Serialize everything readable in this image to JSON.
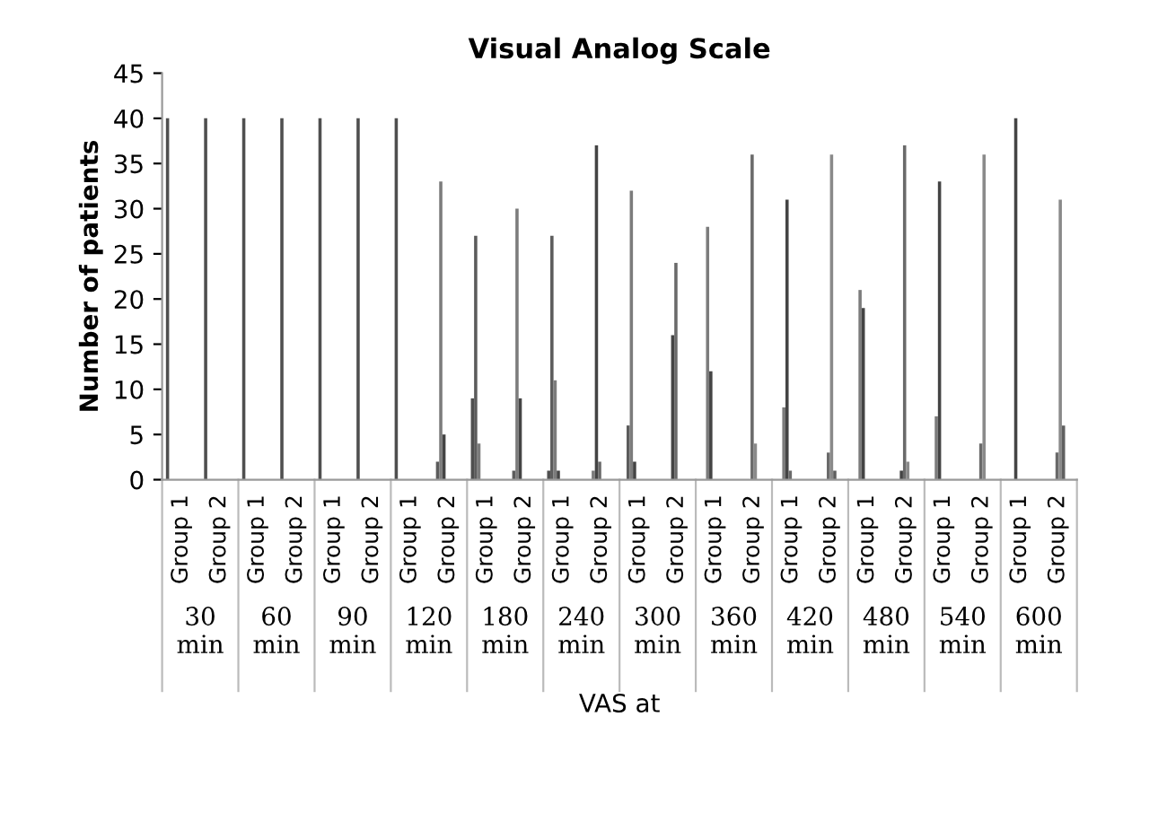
{
  "chart_data": {
    "type": "bar",
    "title": "Visual Analog Scale",
    "xlabel": "VAS at",
    "ylabel": "Number of patients",
    "categories": [
      "Group 1",
      "Group 2",
      "Group 1",
      "Group 2",
      "Group 1",
      "Group 2",
      "Group 1",
      "Group 2",
      "Group 1",
      "Group 2",
      "Group 1",
      "Group 2",
      "Group 1",
      "Group 2",
      "Group 1",
      "Group 2",
      "Group 1",
      "Group 2",
      "Group 1",
      "Group 2",
      "Group 1",
      "Group 2",
      "Group 1",
      "Group 2"
    ],
    "annotations": [
      "30 min",
      "60 min",
      "90 min",
      "120 min",
      "180 min",
      "240 min",
      "300 min",
      "360 min",
      "420 min",
      "480 min",
      "540 min",
      "600 min"
    ],
    "series": [
      {
        "color": "#4f4f4f",
        "values": [
          40,
          40,
          40,
          40,
          40,
          40,
          40,
          0,
          9,
          0,
          1,
          0,
          0,
          0,
          0,
          0,
          0,
          0,
          0,
          0,
          0,
          0,
          0,
          0
        ]
      },
      {
        "color": "#5c5c5c",
        "values": [
          0,
          0,
          0,
          0,
          0,
          0,
          0,
          2,
          27,
          1,
          27,
          0,
          6,
          0,
          0,
          0,
          0,
          0,
          0,
          0,
          0,
          0,
          0,
          0
        ]
      },
      {
        "color": "#7c7c7c",
        "values": [
          0,
          0,
          0,
          0,
          0,
          0,
          0,
          33,
          4,
          30,
          11,
          1,
          32,
          0,
          28,
          0,
          8,
          0,
          21,
          0,
          7,
          0,
          0,
          0
        ]
      },
      {
        "color": "#444444",
        "values": [
          0,
          0,
          0,
          0,
          0,
          0,
          0,
          5,
          0,
          9,
          1,
          37,
          2,
          16,
          12,
          0,
          31,
          0,
          19,
          1,
          33,
          0,
          40,
          0
        ]
      },
      {
        "color": "#6a6a6a",
        "values": [
          0,
          0,
          0,
          0,
          0,
          0,
          0,
          0,
          0,
          0,
          0,
          2,
          0,
          24,
          0,
          36,
          1,
          3,
          0,
          37,
          0,
          4,
          0,
          3
        ]
      },
      {
        "color": "#8a8a8a",
        "values": [
          0,
          0,
          0,
          0,
          0,
          0,
          0,
          0,
          0,
          0,
          0,
          0,
          0,
          0,
          0,
          4,
          0,
          36,
          0,
          2,
          0,
          36,
          0,
          31
        ]
      },
      {
        "color": "#606060",
        "values": [
          0,
          0,
          0,
          0,
          0,
          0,
          0,
          0,
          0,
          0,
          0,
          0,
          0,
          0,
          0,
          0,
          0,
          1,
          0,
          0,
          0,
          0,
          0,
          6
        ]
      },
      {
        "color": "#969696",
        "values": [
          0,
          0,
          0,
          0,
          0,
          0,
          0,
          0,
          0,
          0,
          0,
          0,
          0,
          0,
          0,
          0,
          0,
          0,
          0,
          0,
          0,
          0,
          0,
          0
        ]
      }
    ],
    "ylim": [
      0,
      45
    ],
    "yticks": [
      0,
      5,
      10,
      15,
      20,
      25,
      30,
      35,
      40,
      45
    ],
    "grid": false
  }
}
